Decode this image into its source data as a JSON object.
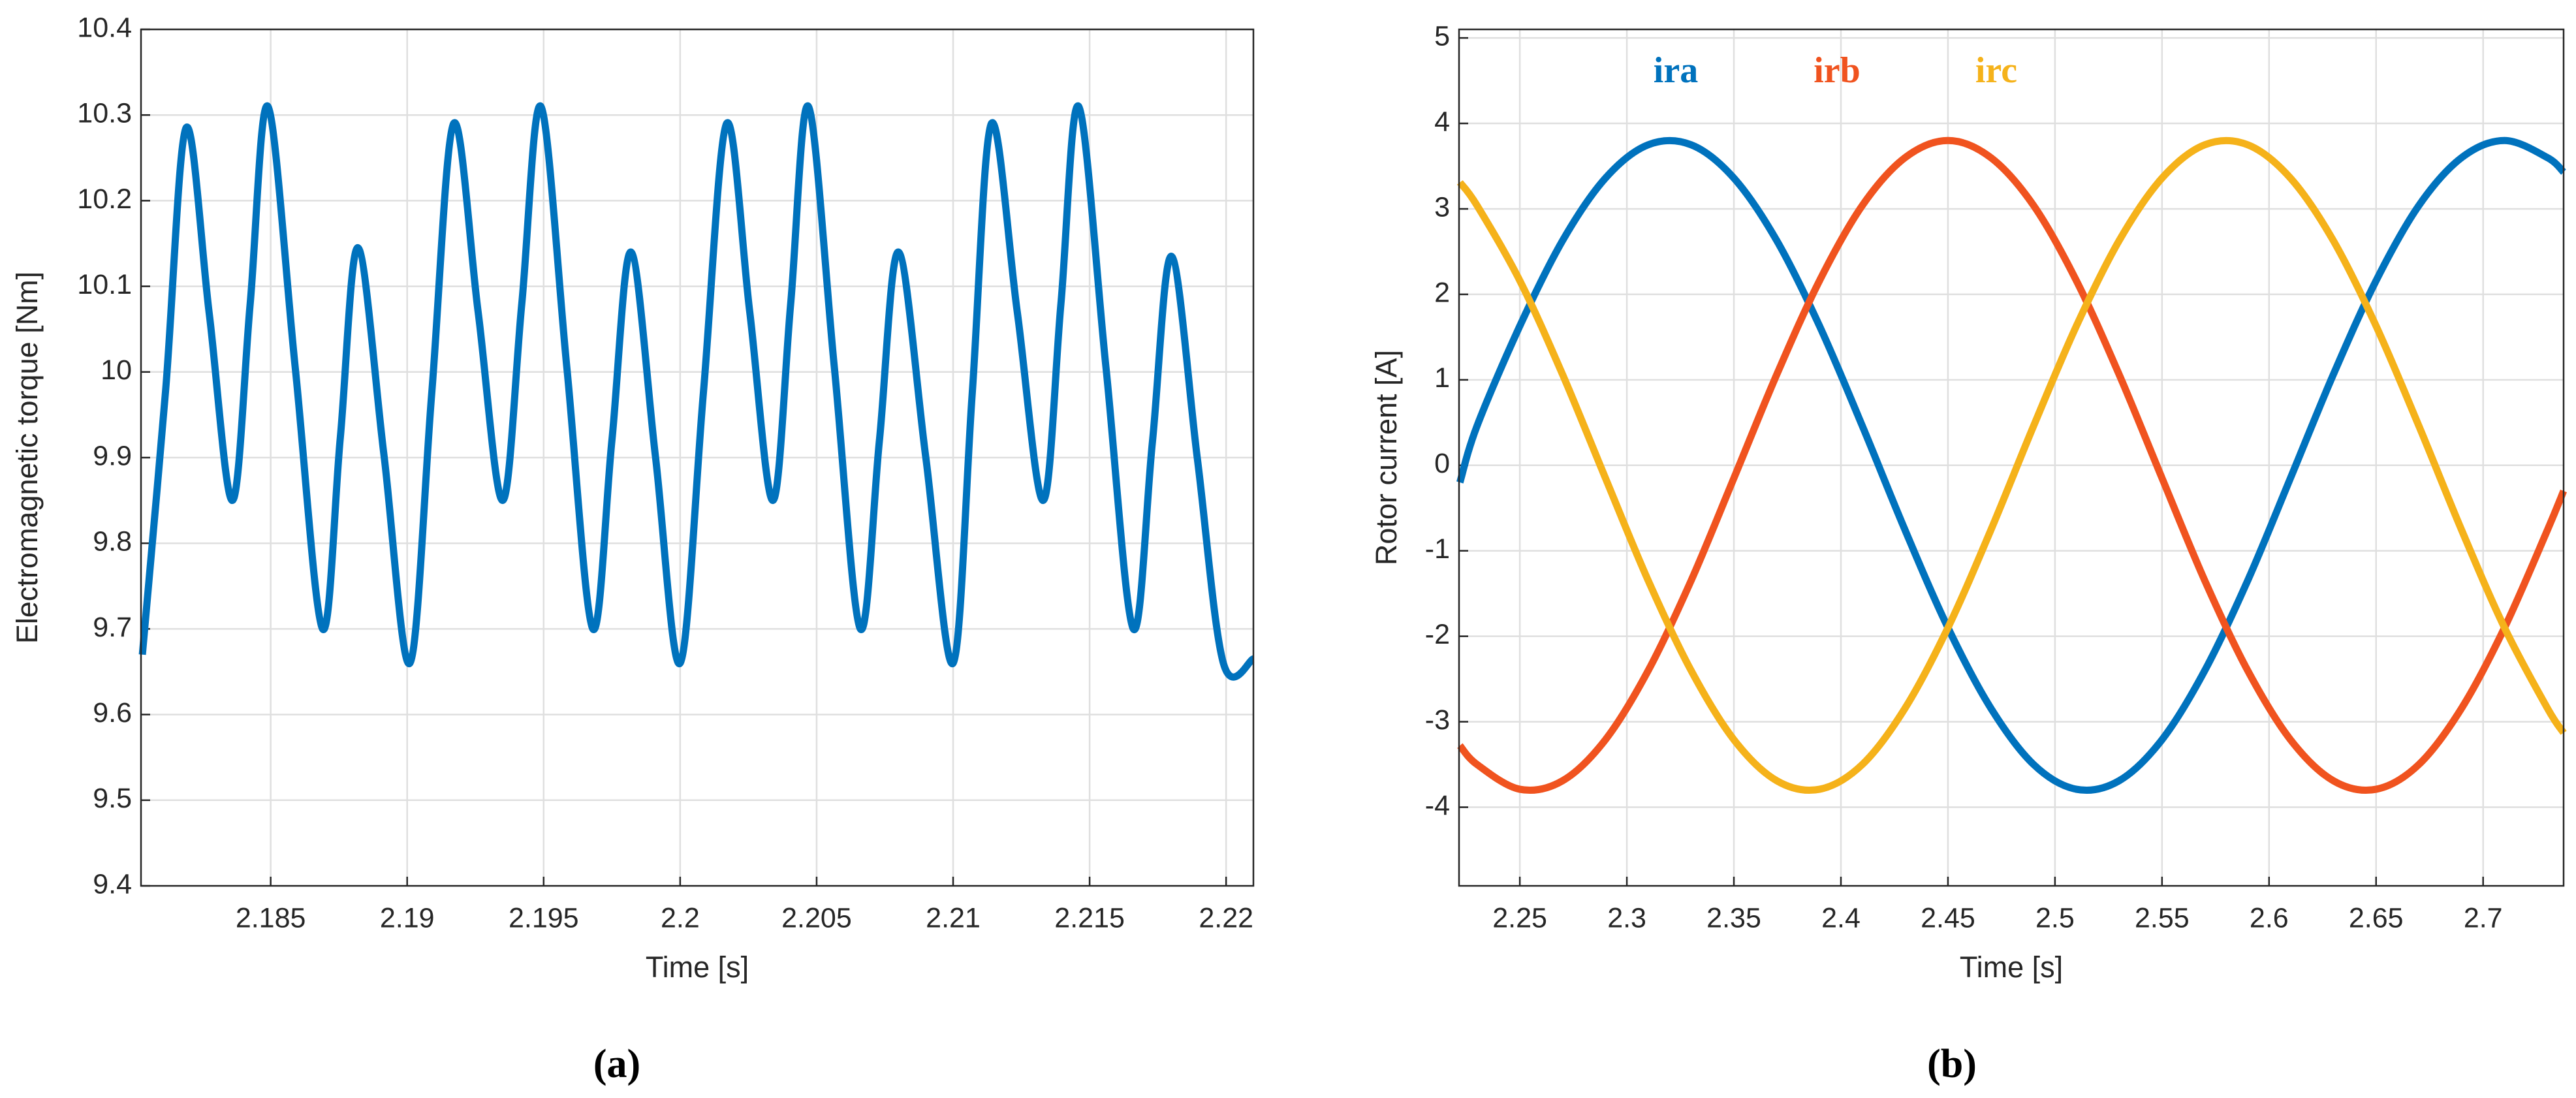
{
  "chart_data": [
    {
      "type": "line",
      "ylabel": "Electromagnetic torque [Nm]",
      "xlabel": "Time [s]",
      "caption": "(a)",
      "xlim": [
        2.18025,
        2.221
      ],
      "ylim": [
        9.4,
        10.4
      ],
      "xticks": [
        2.185,
        2.19,
        2.195,
        2.2,
        2.205,
        2.21,
        2.215,
        2.22
      ],
      "yticks": [
        9.4,
        9.5,
        9.6,
        9.7,
        9.8,
        9.9,
        10,
        10.1,
        10.2,
        10.3,
        10.4
      ],
      "grid": true,
      "x": [
        2.1803,
        2.18115,
        2.1819,
        2.18275,
        2.1836,
        2.18425,
        2.1849,
        2.1859,
        2.1869,
        2.18755,
        2.1882,
        2.18915,
        2.1901,
        2.1909,
        2.1917,
        2.1926,
        2.1935,
        2.1942,
        2.1949,
        2.19585,
        2.1968,
        2.1975,
        2.1982,
        2.1991,
        2.2,
        2.20085,
        2.2017,
        2.20255,
        2.2034,
        2.20405,
        2.2047,
        2.20565,
        2.2066,
        2.2073,
        2.208,
        2.209,
        2.21,
        2.2107,
        2.2114,
        2.21235,
        2.2133,
        2.21395,
        2.2146,
        2.2156,
        2.2166,
        2.2173,
        2.218,
        2.21895,
        2.2199,
        2.221
      ],
      "series": [
        {
          "color": "#0072bd",
          "values": [
            9.67,
            9.978,
            10.285,
            10.068,
            9.85,
            10.08,
            10.31,
            10.005,
            9.7,
            9.923,
            10.145,
            9.903,
            9.66,
            9.975,
            10.29,
            10.07,
            9.85,
            10.08,
            10.31,
            10.005,
            9.7,
            9.92,
            10.14,
            9.9,
            9.66,
            9.975,
            10.29,
            10.07,
            9.85,
            10.08,
            10.31,
            10.005,
            9.7,
            9.92,
            10.14,
            9.9,
            9.66,
            9.975,
            10.29,
            10.07,
            9.85,
            10.08,
            10.31,
            10.005,
            9.7,
            9.918,
            10.135,
            9.898,
            9.66,
            9.665
          ]
        }
      ]
    },
    {
      "type": "line",
      "ylabel": "Rotor current [A]",
      "xlabel": "Time [s]",
      "caption": "(b)",
      "xlim": [
        2.2216,
        2.7376
      ],
      "ylim": [
        -4.92,
        5.1
      ],
      "xticks": [
        2.25,
        2.3,
        2.35,
        2.4,
        2.45,
        2.5,
        2.55,
        2.6,
        2.65,
        2.7
      ],
      "yticks": [
        -4,
        -3,
        -2,
        -1,
        0,
        1,
        2,
        3,
        4,
        5
      ],
      "grid": true,
      "x": [
        2.222,
        2.23,
        2.25,
        2.27,
        2.29,
        2.31,
        2.33,
        2.35,
        2.37,
        2.39,
        2.41,
        2.43,
        2.45,
        2.47,
        2.49,
        2.51,
        2.53,
        2.55,
        2.57,
        2.59,
        2.61,
        2.63,
        2.65,
        2.67,
        2.69,
        2.71,
        2.73,
        2.7376
      ],
      "series": [
        {
          "name": "ira",
          "color": "#0072bd",
          "values": [
            -0.2,
            0.46,
            1.63,
            2.63,
            3.36,
            3.75,
            3.75,
            3.36,
            2.63,
            1.63,
            0.46,
            -0.76,
            -1.9,
            -2.84,
            -3.5,
            -3.79,
            -3.69,
            -3.21,
            -2.4,
            -1.35,
            -0.15,
            1.06,
            2.16,
            3.04,
            3.6,
            3.8,
            3.6,
            3.43
          ]
        },
        {
          "name": "irb",
          "color": "#f0531f",
          "values": [
            -3.28,
            -3.5,
            -3.79,
            -3.69,
            -3.21,
            -2.4,
            -1.35,
            -0.15,
            1.06,
            2.16,
            3.04,
            3.6,
            3.8,
            3.6,
            3.04,
            2.16,
            1.06,
            -0.15,
            -1.35,
            -2.4,
            -3.21,
            -3.69,
            -3.79,
            -3.5,
            -2.84,
            -1.9,
            -0.76,
            -0.3
          ]
        },
        {
          "name": "irc",
          "color": "#f5b21a",
          "values": [
            3.31,
            3.04,
            2.16,
            1.06,
            -0.15,
            -1.35,
            -2.4,
            -3.21,
            -3.69,
            -3.79,
            -3.5,
            -2.84,
            -1.9,
            -0.76,
            0.46,
            1.63,
            2.63,
            3.36,
            3.75,
            3.75,
            3.36,
            2.63,
            1.63,
            0.46,
            -0.76,
            -1.9,
            -2.84,
            -3.13
          ]
        }
      ]
    }
  ]
}
